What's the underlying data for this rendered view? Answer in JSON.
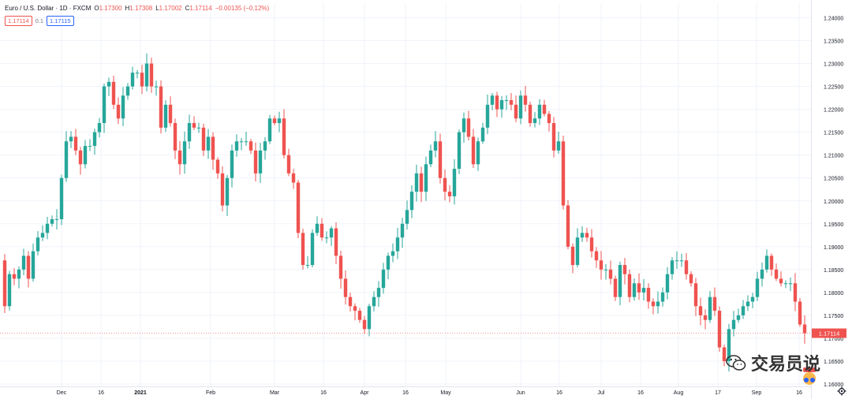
{
  "legend": {
    "title": "Euro / U.S. Dollar · 1D · FXCM",
    "o_label": "O",
    "o": "1.17300",
    "h_label": "H",
    "h": "1.17308",
    "l_label": "L",
    "l": "1.17002",
    "c_label": "C",
    "c": "1.17114",
    "change": "−0.00135 (−0.12%)",
    "bid": "1.17114",
    "spread": "0.1",
    "ask": "1.17115"
  },
  "watermark": {
    "text": "交易员说",
    "icon": "wechat-icon"
  },
  "colors": {
    "up": "#26a69a",
    "down": "#ef5350",
    "grid": "#f0f3fa",
    "axis_text": "#131722",
    "bg": "#ffffff"
  },
  "chart_data": {
    "type": "candlestick",
    "title": "Euro / U.S. Dollar · 1D · FXCM",
    "xlabel": "",
    "ylabel": "",
    "ylim": [
      1.16,
      1.2425
    ],
    "y_ticks": [
      "1.16000",
      "1.16500",
      "1.17000",
      "1.17500",
      "1.18000",
      "1.18500",
      "1.19000",
      "1.19500",
      "1.20000",
      "1.20500",
      "1.21000",
      "1.21500",
      "1.22000",
      "1.22500",
      "1.23000",
      "1.23500",
      "1.24000"
    ],
    "x_ticks": [
      "Dec",
      "16",
      "2021",
      "Feb",
      "Mar",
      "16",
      "Apr",
      "16",
      "May",
      "Jun",
      "16",
      "Jul",
      "16",
      "Aug",
      "17",
      "Sep",
      "16"
    ],
    "grid": true,
    "close_trajectory": [
      [
        0,
        1.187
      ],
      [
        6,
        1.177
      ],
      [
        12,
        1.184
      ],
      [
        18,
        1.183
      ],
      [
        24,
        1.185
      ],
      [
        30,
        1.188
      ],
      [
        36,
        1.183
      ],
      [
        42,
        1.189
      ],
      [
        48,
        1.192
      ],
      [
        54,
        1.193
      ],
      [
        60,
        1.195
      ],
      [
        66,
        1.196
      ],
      [
        72,
        1.196
      ],
      [
        78,
        1.205
      ],
      [
        84,
        1.213
      ],
      [
        90,
        1.214
      ],
      [
        96,
        1.211
      ],
      [
        102,
        1.208
      ],
      [
        108,
        1.212
      ],
      [
        114,
        1.212
      ],
      [
        120,
        1.215
      ],
      [
        126,
        1.217
      ],
      [
        132,
        1.225
      ],
      [
        138,
        1.226
      ],
      [
        144,
        1.221
      ],
      [
        150,
        1.218
      ],
      [
        156,
        1.223
      ],
      [
        162,
        1.225
      ],
      [
        168,
        1.228
      ],
      [
        174,
        1.228
      ],
      [
        180,
        1.225
      ],
      [
        186,
        1.23
      ],
      [
        192,
        1.225
      ],
      [
        198,
        1.225
      ],
      [
        204,
        1.216
      ],
      [
        210,
        1.221
      ],
      [
        216,
        1.217
      ],
      [
        222,
        1.211
      ],
      [
        228,
        1.208
      ],
      [
        234,
        1.213
      ],
      [
        240,
        1.217
      ],
      [
        246,
        1.216
      ],
      [
        252,
        1.216
      ],
      [
        258,
        1.211
      ],
      [
        264,
        1.214
      ],
      [
        270,
        1.209
      ],
      [
        276,
        1.206
      ],
      [
        282,
        1.199
      ],
      [
        288,
        1.205
      ],
      [
        294,
        1.211
      ],
      [
        300,
        1.213
      ],
      [
        306,
        1.213
      ],
      [
        312,
        1.213
      ],
      [
        318,
        1.211
      ],
      [
        324,
        1.206
      ],
      [
        330,
        1.211
      ],
      [
        336,
        1.213
      ],
      [
        342,
        1.218
      ],
      [
        348,
        1.217
      ],
      [
        354,
        1.218
      ],
      [
        360,
        1.21
      ],
      [
        366,
        1.206
      ],
      [
        372,
        1.204
      ],
      [
        378,
        1.193
      ],
      [
        384,
        1.186
      ],
      [
        390,
        1.186
      ],
      [
        396,
        1.193
      ],
      [
        402,
        1.195
      ],
      [
        408,
        1.192
      ],
      [
        414,
        1.192
      ],
      [
        420,
        1.194
      ],
      [
        426,
        1.188
      ],
      [
        432,
        1.183
      ],
      [
        438,
        1.179
      ],
      [
        444,
        1.177
      ],
      [
        450,
        1.176
      ],
      [
        456,
        1.174
      ],
      [
        462,
        1.172
      ],
      [
        468,
        1.177
      ],
      [
        474,
        1.179
      ],
      [
        480,
        1.181
      ],
      [
        486,
        1.185
      ],
      [
        492,
        1.188
      ],
      [
        498,
        1.189
      ],
      [
        504,
        1.192
      ],
      [
        510,
        1.195
      ],
      [
        516,
        1.198
      ],
      [
        522,
        1.202
      ],
      [
        528,
        1.206
      ],
      [
        534,
        1.202
      ],
      [
        540,
        1.208
      ],
      [
        546,
        1.211
      ],
      [
        552,
        1.213
      ],
      [
        558,
        1.205
      ],
      [
        564,
        1.202
      ],
      [
        570,
        1.201
      ],
      [
        576,
        1.207
      ],
      [
        582,
        1.215
      ],
      [
        588,
        1.218
      ],
      [
        594,
        1.214
      ],
      [
        600,
        1.208
      ],
      [
        606,
        1.213
      ],
      [
        612,
        1.216
      ],
      [
        618,
        1.221
      ],
      [
        624,
        1.223
      ],
      [
        630,
        1.22
      ],
      [
        636,
        1.222
      ],
      [
        642,
        1.222
      ],
      [
        648,
        1.221
      ],
      [
        654,
        1.218
      ],
      [
        660,
        1.223
      ],
      [
        666,
        1.221
      ],
      [
        672,
        1.217
      ],
      [
        678,
        1.218
      ],
      [
        684,
        1.221
      ],
      [
        690,
        1.219
      ],
      [
        696,
        1.217
      ],
      [
        702,
        1.211
      ],
      [
        708,
        1.213
      ],
      [
        714,
        1.199
      ],
      [
        720,
        1.19
      ],
      [
        726,
        1.186
      ],
      [
        732,
        1.192
      ],
      [
        738,
        1.193
      ],
      [
        744,
        1.192
      ],
      [
        750,
        1.189
      ],
      [
        756,
        1.187
      ],
      [
        762,
        1.185
      ],
      [
        768,
        1.185
      ],
      [
        774,
        1.183
      ],
      [
        780,
        1.179
      ],
      [
        786,
        1.186
      ],
      [
        792,
        1.184
      ],
      [
        798,
        1.179
      ],
      [
        804,
        1.182
      ],
      [
        810,
        1.18
      ],
      [
        816,
        1.181
      ],
      [
        822,
        1.178
      ],
      [
        828,
        1.177
      ],
      [
        834,
        1.178
      ],
      [
        840,
        1.18
      ],
      [
        846,
        1.184
      ],
      [
        852,
        1.187
      ],
      [
        858,
        1.187
      ],
      [
        864,
        1.187
      ],
      [
        870,
        1.184
      ],
      [
        876,
        1.182
      ],
      [
        882,
        1.177
      ],
      [
        888,
        1.175
      ],
      [
        894,
        1.174
      ],
      [
        900,
        1.179
      ],
      [
        906,
        1.176
      ],
      [
        912,
        1.168
      ],
      [
        918,
        1.165
      ],
      [
        924,
        1.172
      ],
      [
        930,
        1.174
      ],
      [
        936,
        1.175
      ],
      [
        942,
        1.177
      ],
      [
        948,
        1.178
      ],
      [
        954,
        1.179
      ],
      [
        960,
        1.183
      ],
      [
        966,
        1.185
      ],
      [
        972,
        1.188
      ],
      [
        978,
        1.185
      ],
      [
        984,
        1.183
      ],
      [
        990,
        1.182
      ],
      [
        996,
        1.182
      ],
      [
        1002,
        1.182
      ],
      [
        1008,
        1.178
      ],
      [
        1014,
        1.173
      ],
      [
        1020,
        1.1711
      ]
    ]
  }
}
